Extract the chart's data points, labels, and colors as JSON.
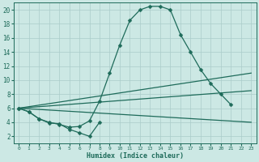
{
  "xlabel": "Humidex (Indice chaleur)",
  "bg_color": "#cce8e4",
  "line_color": "#1e6b5a",
  "grid_color": "#aaccca",
  "xlim": [
    -0.5,
    23.5
  ],
  "ylim": [
    1.0,
    21.0
  ],
  "xticks": [
    0,
    1,
    2,
    3,
    4,
    5,
    6,
    7,
    8,
    9,
    10,
    11,
    12,
    13,
    14,
    15,
    16,
    17,
    18,
    19,
    20,
    21,
    22,
    23
  ],
  "yticks": [
    2,
    4,
    6,
    8,
    10,
    12,
    14,
    16,
    18,
    20
  ],
  "series": [
    {
      "x": [
        0,
        1,
        2,
        3,
        4,
        5,
        6,
        7,
        8,
        9,
        10,
        11,
        12,
        13,
        14,
        15,
        16,
        17,
        18,
        19,
        20,
        21
      ],
      "y": [
        6.0,
        5.5,
        4.5,
        4.0,
        3.7,
        3.3,
        3.4,
        4.2,
        7.0,
        11.0,
        15.0,
        18.5,
        20.0,
        20.5,
        20.5,
        20.0,
        16.5,
        14.0,
        11.5,
        9.5,
        8.0,
        6.5
      ],
      "marker": "D",
      "markersize": 2.5,
      "linewidth": 0.9
    },
    {
      "x": [
        0,
        1,
        2,
        3,
        4,
        5,
        6,
        7,
        8
      ],
      "y": [
        6.0,
        5.5,
        4.5,
        3.9,
        3.8,
        3.0,
        2.5,
        2.0,
        4.0
      ],
      "marker": "D",
      "markersize": 2.5,
      "linewidth": 0.9
    },
    {
      "x": [
        0,
        23
      ],
      "y": [
        6.0,
        11.0
      ],
      "marker": null,
      "markersize": 0,
      "linewidth": 0.9
    },
    {
      "x": [
        0,
        23
      ],
      "y": [
        6.0,
        8.5
      ],
      "marker": null,
      "markersize": 0,
      "linewidth": 0.9
    },
    {
      "x": [
        0,
        23
      ],
      "y": [
        6.0,
        4.0
      ],
      "marker": null,
      "markersize": 0,
      "linewidth": 0.9
    }
  ]
}
